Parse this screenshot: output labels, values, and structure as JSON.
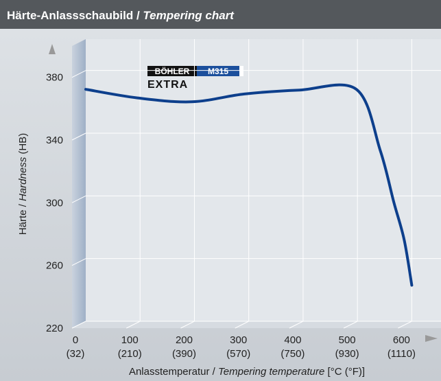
{
  "chart_data": {
    "type": "line",
    "title": {
      "main": "Härte-Anlassschaubild /",
      "italic": "Tempering chart"
    },
    "logo": {
      "brand": "BÖHLER",
      "grade": "M315",
      "suffix": "EXTRA"
    },
    "ylabel": {
      "de": "Härte /",
      "en": "Hardness",
      "unit": "(HB)"
    },
    "xlabel": {
      "de": "Anlasstemperatur /",
      "en": "Tempering temperature",
      "unit": "[°C (°F)]"
    },
    "x": [
      0,
      95,
      195,
      292,
      393,
      498,
      542,
      567,
      586,
      600
    ],
    "series": [
      {
        "name": "BÖHLER M315 EXTRA",
        "color": "#0d3f8c",
        "values": [
          368,
          362.5,
          360,
          365,
          367.5,
          368,
          329,
          296,
          272,
          243
        ]
      }
    ],
    "xlim": [
      0,
      650
    ],
    "xticks": [
      0,
      100,
      200,
      300,
      400,
      500,
      600
    ],
    "xtick_labels_f": [
      "(32)",
      "(210)",
      "(390)",
      "(570)",
      "(750)",
      "(930)",
      "(1110)"
    ],
    "ylim": [
      220,
      400
    ],
    "yticks": [
      220,
      260,
      300,
      340,
      380
    ],
    "grid": true
  }
}
